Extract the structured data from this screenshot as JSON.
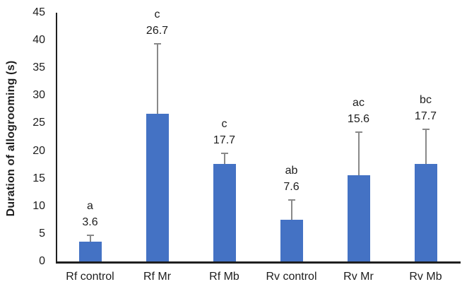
{
  "figure": {
    "background": "#ffffff"
  },
  "chart_data": {
    "type": "bar",
    "title": "",
    "ylabel": "Duration of allogrooming (s)",
    "xlabel": "",
    "ylim": [
      0,
      45
    ],
    "ytick_step": 5,
    "ytick_labels": [
      "0",
      "5",
      "10",
      "15",
      "20",
      "25",
      "30",
      "35",
      "40",
      "45"
    ],
    "categories": [
      "Rf control",
      "Rf Mr",
      "Rf Mb",
      "Rv control",
      "Rv Mr",
      "Rv Mb"
    ],
    "values": [
      3.6,
      26.7,
      17.7,
      7.6,
      15.6,
      17.7
    ],
    "value_labels": [
      "3.6",
      "26.7",
      "17.7",
      "7.6",
      "15.6",
      "17.7"
    ],
    "significance_letters": [
      "a",
      "c",
      "c",
      "ab",
      "ac",
      "bc"
    ],
    "error_upper": [
      1.1,
      12.7,
      1.9,
      3.5,
      7.8,
      6.2
    ],
    "grid": false,
    "legend": false,
    "bar_color": "#4472C4",
    "error_bar_color": "#898989",
    "axis_color": "#1f1f1f",
    "text_color": "#1d1d1d"
  }
}
